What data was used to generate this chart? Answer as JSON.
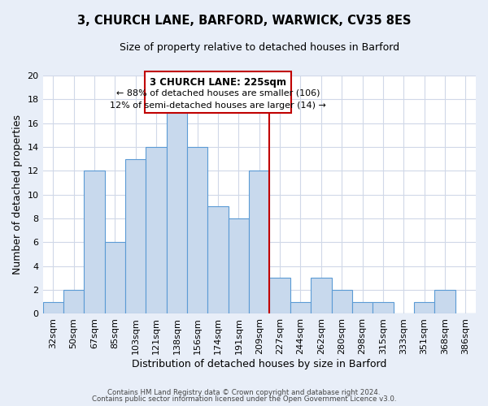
{
  "title": "3, CHURCH LANE, BARFORD, WARWICK, CV35 8ES",
  "subtitle": "Size of property relative to detached houses in Barford",
  "xlabel": "Distribution of detached houses by size in Barford",
  "ylabel": "Number of detached properties",
  "footer_line1": "Contains HM Land Registry data © Crown copyright and database right 2024.",
  "footer_line2": "Contains public sector information licensed under the Open Government Licence v3.0.",
  "bins": [
    "32sqm",
    "50sqm",
    "67sqm",
    "85sqm",
    "103sqm",
    "121sqm",
    "138sqm",
    "156sqm",
    "174sqm",
    "191sqm",
    "209sqm",
    "227sqm",
    "244sqm",
    "262sqm",
    "280sqm",
    "298sqm",
    "315sqm",
    "333sqm",
    "351sqm",
    "368sqm",
    "386sqm"
  ],
  "counts": [
    1,
    2,
    12,
    6,
    13,
    14,
    17,
    14,
    9,
    8,
    12,
    3,
    1,
    3,
    2,
    1,
    1,
    0,
    1,
    2,
    0
  ],
  "bar_color": "#c8d9ed",
  "bar_edge_color": "#5b9bd5",
  "ref_line_color": "#c00000",
  "annotation_title": "3 CHURCH LANE: 225sqm",
  "annotation_line1": "← 88% of detached houses are smaller (106)",
  "annotation_line2": "12% of semi-detached houses are larger (14) →",
  "annotation_box_color": "#ffffff",
  "annotation_box_edge_color": "#c00000",
  "ylim": [
    0,
    20
  ],
  "plot_bg_color": "#ffffff",
  "fig_bg_color": "#e8eef8",
  "grid_color": "#d0d8e8"
}
